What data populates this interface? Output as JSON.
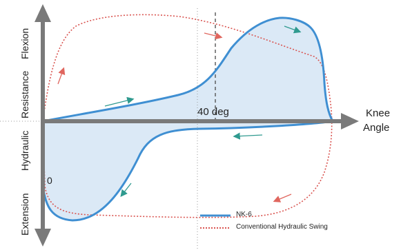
{
  "labels": {
    "flexion": "Flexion",
    "resistance": "Resistance",
    "hydraulic": "Hydraulic",
    "extension": "Extension",
    "knee": "Knee",
    "angle": "Angle",
    "forty_deg": "40 deg",
    "zero": "0"
  },
  "legend": [
    {
      "name": "NK-6",
      "style": "solid",
      "color": "#3f8fd2"
    },
    {
      "name": "Conventional Hydraulic Swing",
      "style": "dotted",
      "color": "#d9534f"
    }
  ],
  "colors": {
    "axis": "#7a7a7a",
    "nk6_line": "#3f8fd2",
    "nk6_fill": "#dbe9f6",
    "conventional": "#d9534f",
    "teal_arrow": "#2f9a8f",
    "red_arrow": "#e0665e"
  }
}
